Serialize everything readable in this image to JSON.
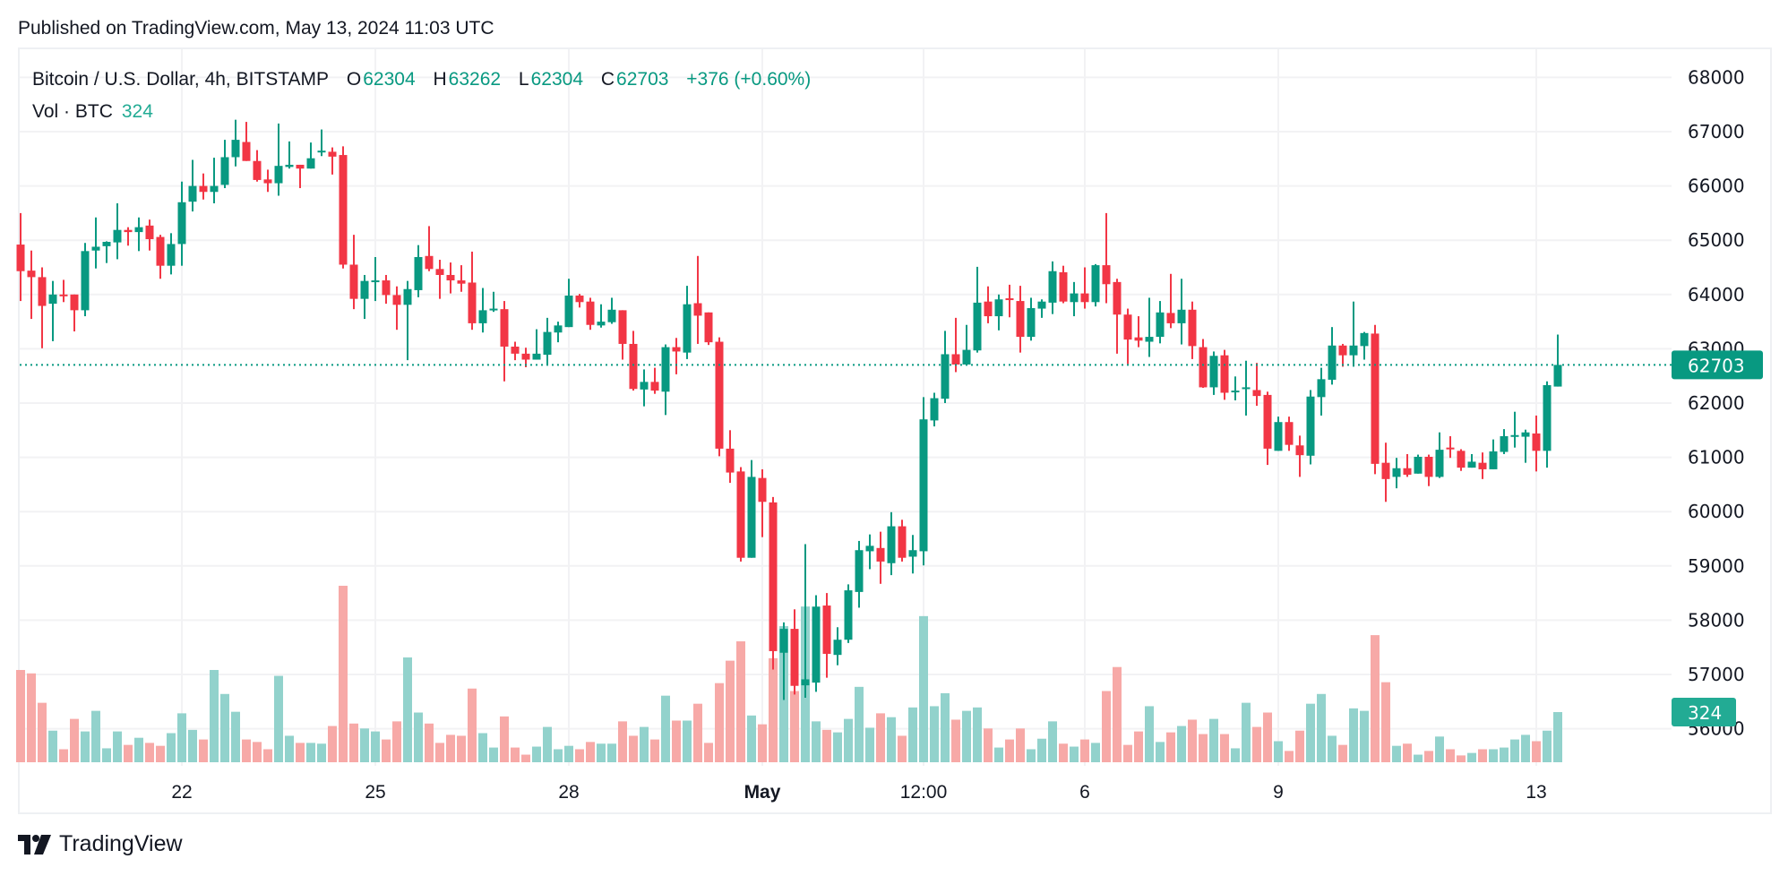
{
  "published": "Published on TradingView.com, May 13, 2024 11:03 UTC",
  "legend": {
    "symbol": "Bitcoin / U.S. Dollar, 4h, BITSTAMP",
    "o_label": "O",
    "o": "62304",
    "h_label": "H",
    "h": "63262",
    "l_label": "L",
    "l": "62304",
    "c_label": "C",
    "c": "62703",
    "change": "+376 (+0.60%)",
    "vol_label": "Vol · BTC",
    "vol": "324"
  },
  "footer": {
    "brand": "TradingView",
    "logo_icon": "tradingview-logo-icon"
  },
  "colors": {
    "up": "#089981",
    "down": "#F23645",
    "vol_up": "#92D2CC",
    "vol_down": "#F7A9A7",
    "last_price_label": "#089981",
    "volume_label": "#22AB94",
    "grid": "#F2F2F4"
  },
  "chart_data": {
    "type": "candlestick",
    "title": "Bitcoin / U.S. Dollar, 4h, BITSTAMP",
    "interval": "4h",
    "ylim": [
      55400,
      68500
    ],
    "y_ticks": [
      "68000",
      "67000",
      "66000",
      "65000",
      "64000",
      "63000",
      "62000",
      "61000",
      "60000",
      "59000",
      "58000",
      "57000",
      "56000"
    ],
    "x_ticks": [
      {
        "label": "22",
        "index": 15
      },
      {
        "label": "25",
        "index": 33
      },
      {
        "label": "28",
        "index": 51
      },
      {
        "label": "May",
        "index": 69,
        "bold": true
      },
      {
        "label": "12:00",
        "index": 84
      },
      {
        "label": "6",
        "index": 99
      },
      {
        "label": "9",
        "index": 117
      },
      {
        "label": "13",
        "index": 141
      }
    ],
    "last_price": "62703",
    "last_volume": "324",
    "grid": true,
    "columns": [
      "open",
      "high",
      "low",
      "close",
      "volume"
    ],
    "candles": [
      [
        64920,
        65500,
        63880,
        64430,
        596
      ],
      [
        64440,
        64810,
        63550,
        64320,
        574
      ],
      [
        64320,
        64500,
        63010,
        63790,
        384
      ],
      [
        63830,
        64250,
        63140,
        64000,
        204
      ],
      [
        64000,
        64270,
        63860,
        63990,
        84
      ],
      [
        64000,
        64000,
        63320,
        63710,
        280
      ],
      [
        63710,
        64950,
        63600,
        64800,
        199
      ],
      [
        64810,
        65420,
        64480,
        64880,
        332
      ],
      [
        64890,
        64980,
        64580,
        64970,
        90
      ],
      [
        64960,
        65680,
        64650,
        65190,
        199
      ],
      [
        65190,
        65240,
        64900,
        65150,
        112
      ],
      [
        65150,
        65420,
        64800,
        65240,
        158
      ],
      [
        65270,
        65380,
        64810,
        65020,
        125
      ],
      [
        65060,
        65100,
        64290,
        64530,
        106
      ],
      [
        64530,
        65130,
        64370,
        64930,
        188
      ],
      [
        64930,
        66080,
        64530,
        65700,
        316
      ],
      [
        65710,
        66480,
        65530,
        66000,
        209
      ],
      [
        66000,
        66230,
        65750,
        65890,
        147
      ],
      [
        65890,
        66520,
        65680,
        66000,
        596
      ],
      [
        66020,
        66850,
        65960,
        66530,
        441
      ],
      [
        66530,
        67220,
        66360,
        66850,
        326
      ],
      [
        66810,
        67180,
        66460,
        66460,
        147
      ],
      [
        66460,
        66660,
        66080,
        66110,
        131
      ],
      [
        66120,
        66300,
        65890,
        66050,
        84
      ],
      [
        66050,
        67150,
        65820,
        66370,
        558
      ],
      [
        66350,
        66820,
        66320,
        66390,
        171
      ],
      [
        66390,
        66390,
        65960,
        66320,
        125
      ],
      [
        66320,
        66800,
        66320,
        66510,
        125
      ],
      [
        66630,
        67040,
        66550,
        66650,
        120
      ],
      [
        66630,
        66710,
        66210,
        66540,
        234
      ],
      [
        66570,
        66730,
        64480,
        64550,
        1140
      ],
      [
        64550,
        65100,
        63730,
        63920,
        250
      ],
      [
        63920,
        64360,
        63550,
        64250,
        218
      ],
      [
        64240,
        64690,
        63880,
        64260,
        199
      ],
      [
        64260,
        64360,
        63830,
        63990,
        147
      ],
      [
        63990,
        64150,
        63350,
        63810,
        264
      ],
      [
        63810,
        64250,
        62790,
        64100,
        677
      ],
      [
        64080,
        64910,
        63950,
        64690,
        321
      ],
      [
        64710,
        65260,
        64430,
        64470,
        250
      ],
      [
        64470,
        64640,
        63920,
        64360,
        125
      ],
      [
        64360,
        64590,
        64020,
        64260,
        177
      ],
      [
        64260,
        64540,
        64050,
        64200,
        171
      ],
      [
        64220,
        64790,
        63350,
        63470,
        476
      ],
      [
        63470,
        64120,
        63300,
        63710,
        188
      ],
      [
        63720,
        64050,
        63680,
        63740,
        95
      ],
      [
        63730,
        63880,
        62400,
        63040,
        296
      ],
      [
        63040,
        63130,
        62790,
        62910,
        95
      ],
      [
        62910,
        63020,
        62660,
        62800,
        49
      ],
      [
        62800,
        63360,
        62800,
        62910,
        101
      ],
      [
        62890,
        63570,
        62710,
        63310,
        228
      ],
      [
        63300,
        63500,
        63120,
        63430,
        84
      ],
      [
        63400,
        64290,
        63400,
        63980,
        106
      ],
      [
        63980,
        64010,
        63760,
        63860,
        84
      ],
      [
        63870,
        63940,
        63350,
        63440,
        131
      ],
      [
        63430,
        63820,
        63390,
        63500,
        120
      ],
      [
        63490,
        63940,
        63460,
        63720,
        120
      ],
      [
        63710,
        63710,
        62800,
        63090,
        264
      ],
      [
        63090,
        63330,
        62230,
        62260,
        171
      ],
      [
        62250,
        62620,
        61940,
        62390,
        228
      ],
      [
        62390,
        62650,
        62170,
        62230,
        147
      ],
      [
        62210,
        63080,
        61780,
        63030,
        430
      ],
      [
        63030,
        63200,
        62530,
        62950,
        269
      ],
      [
        62930,
        64160,
        62810,
        63820,
        269
      ],
      [
        63840,
        64710,
        63090,
        63610,
        378
      ],
      [
        63670,
        63670,
        63070,
        63120,
        125
      ],
      [
        63130,
        63210,
        61020,
        61160,
        511
      ],
      [
        61160,
        61500,
        60530,
        60720,
        656
      ],
      [
        60740,
        60820,
        59080,
        59150,
        781
      ],
      [
        59150,
        60950,
        59150,
        60640,
        302
      ],
      [
        60620,
        60780,
        59530,
        60180,
        245
      ],
      [
        60170,
        60270,
        57090,
        57430,
        672
      ],
      [
        57400,
        57960,
        56530,
        57840,
        879
      ],
      [
        57840,
        58200,
        56630,
        56790,
        460
      ],
      [
        56800,
        59400,
        56570,
        56910,
        1006
      ],
      [
        56850,
        58460,
        56680,
        58250,
        264
      ],
      [
        58270,
        58500,
        56940,
        57380,
        209
      ],
      [
        57360,
        57870,
        57170,
        57640,
        193
      ],
      [
        57640,
        58660,
        57580,
        58550,
        280
      ],
      [
        58520,
        59460,
        58230,
        59290,
        487
      ],
      [
        59270,
        59580,
        58940,
        59370,
        223
      ],
      [
        59330,
        59630,
        58670,
        59080,
        316
      ],
      [
        59050,
        59990,
        58830,
        59730,
        291
      ],
      [
        59730,
        59850,
        59080,
        59150,
        171
      ],
      [
        59170,
        59570,
        58860,
        59290,
        354
      ],
      [
        59270,
        62110,
        59010,
        61700,
        944
      ],
      [
        61680,
        62190,
        61570,
        62090,
        362
      ],
      [
        62080,
        63330,
        62000,
        62900,
        446
      ],
      [
        62900,
        63570,
        62570,
        62710,
        275
      ],
      [
        62710,
        63440,
        62710,
        62980,
        332
      ],
      [
        62970,
        64510,
        62930,
        63850,
        354
      ],
      [
        63870,
        64150,
        63470,
        63600,
        218
      ],
      [
        63600,
        64000,
        63340,
        63910,
        95
      ],
      [
        63930,
        64180,
        63580,
        63910,
        147
      ],
      [
        63880,
        64160,
        62930,
        63220,
        218
      ],
      [
        63220,
        63940,
        63150,
        63750,
        84
      ],
      [
        63740,
        63910,
        63570,
        63870,
        152
      ],
      [
        63850,
        64610,
        63640,
        64430,
        264
      ],
      [
        64410,
        64530,
        63840,
        63870,
        120
      ],
      [
        63860,
        64230,
        63600,
        64020,
        101
      ],
      [
        64020,
        64500,
        63740,
        63860,
        147
      ],
      [
        63860,
        64560,
        63780,
        64540,
        125
      ],
      [
        64540,
        65500,
        63840,
        64190,
        460
      ],
      [
        64230,
        64290,
        62910,
        63630,
        615
      ],
      [
        63630,
        63740,
        62720,
        63170,
        112
      ],
      [
        63210,
        63600,
        63030,
        63150,
        199
      ],
      [
        63130,
        63940,
        62850,
        63220,
        362
      ],
      [
        63220,
        63880,
        63100,
        63670,
        131
      ],
      [
        63660,
        64380,
        63380,
        63470,
        193
      ],
      [
        63470,
        64290,
        63080,
        63720,
        234
      ],
      [
        63720,
        63870,
        62810,
        63050,
        275
      ],
      [
        63030,
        63180,
        62280,
        62290,
        182
      ],
      [
        62290,
        62950,
        62150,
        62870,
        280
      ],
      [
        62880,
        62980,
        62060,
        62190,
        182
      ],
      [
        62200,
        62490,
        62050,
        62230,
        90
      ],
      [
        62260,
        62780,
        61770,
        62290,
        384
      ],
      [
        62240,
        62740,
        61950,
        62130,
        228
      ],
      [
        62150,
        62210,
        60860,
        61160,
        321
      ],
      [
        61120,
        61750,
        61120,
        61650,
        136
      ],
      [
        61650,
        61750,
        61120,
        61230,
        73
      ],
      [
        61220,
        61400,
        60640,
        61040,
        204
      ],
      [
        61030,
        62240,
        60870,
        62120,
        378
      ],
      [
        62110,
        62650,
        61770,
        62440,
        441
      ],
      [
        62430,
        63400,
        62340,
        63060,
        171
      ],
      [
        63060,
        63090,
        62670,
        62880,
        112
      ],
      [
        62880,
        63870,
        62670,
        63060,
        348
      ],
      [
        63050,
        63310,
        62800,
        63290,
        332
      ],
      [
        63280,
        63440,
        60690,
        60880,
        821
      ],
      [
        60900,
        61270,
        60180,
        60600,
        517
      ],
      [
        60640,
        60990,
        60430,
        60800,
        106
      ],
      [
        60800,
        61060,
        60640,
        60680,
        120
      ],
      [
        60700,
        61050,
        60700,
        61010,
        49
      ],
      [
        61010,
        61050,
        60470,
        60640,
        73
      ],
      [
        60640,
        61460,
        60620,
        61140,
        166
      ],
      [
        61180,
        61390,
        60990,
        61150,
        84
      ],
      [
        61120,
        61150,
        60750,
        60810,
        44
      ],
      [
        60810,
        61060,
        60810,
        60920,
        60
      ],
      [
        60900,
        61090,
        60600,
        60780,
        84
      ],
      [
        60780,
        61330,
        60780,
        61110,
        84
      ],
      [
        61100,
        61520,
        61060,
        61390,
        95
      ],
      [
        61400,
        61840,
        61180,
        61410,
        147
      ],
      [
        61380,
        61510,
        60900,
        61460,
        177
      ],
      [
        61440,
        61770,
        60740,
        61120,
        136
      ],
      [
        61120,
        62400,
        60810,
        62330,
        204
      ],
      [
        62304,
        63262,
        62304,
        62703,
        324
      ]
    ]
  }
}
